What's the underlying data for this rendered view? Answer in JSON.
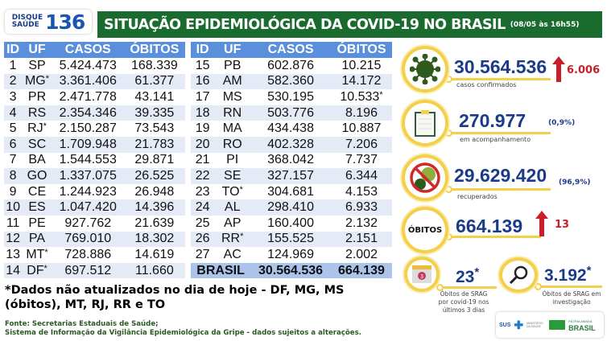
{
  "logo": {
    "line1": "DISQUE",
    "line2": "SAÚDE",
    "number": "136"
  },
  "header": {
    "title": "SITUAÇÃO EPIDEMIOLÓGICA DA COVID-19 NO BRASIL",
    "timestamp": "(08/05 às 16h55)"
  },
  "table": {
    "columns": [
      "ID",
      "UF",
      "CASOS",
      "ÓBITOS"
    ],
    "rows_left": [
      [
        "1",
        "SP",
        "",
        "5.424.473",
        "168.339",
        ""
      ],
      [
        "2",
        "MG",
        "*",
        "3.361.406",
        "61.377",
        ""
      ],
      [
        "3",
        "PR",
        "",
        "2.471.778",
        "43.141",
        ""
      ],
      [
        "4",
        "RS",
        "",
        "2.354.346",
        "39.335",
        ""
      ],
      [
        "5",
        "RJ",
        "*",
        "2.150.287",
        "73.543",
        ""
      ],
      [
        "6",
        "SC",
        "",
        "1.709.948",
        "21.783",
        ""
      ],
      [
        "7",
        "BA",
        "",
        "1.544.553",
        "29.871",
        ""
      ],
      [
        "8",
        "GO",
        "",
        "1.337.075",
        "26.525",
        ""
      ],
      [
        "9",
        "CE",
        "",
        "1.244.923",
        "26.948",
        ""
      ],
      [
        "10",
        "ES",
        "",
        "1.047.420",
        "14.396",
        ""
      ],
      [
        "11",
        "PE",
        "",
        "927.762",
        "21.639",
        ""
      ],
      [
        "12",
        "PA",
        "",
        "769.010",
        "18.302",
        ""
      ],
      [
        "13",
        "MT",
        "*",
        "728.886",
        "14.619",
        ""
      ],
      [
        "14",
        "DF",
        "*",
        "697.512",
        "11.660",
        ""
      ]
    ],
    "rows_right": [
      [
        "15",
        "PB",
        "",
        "602.876",
        "10.215",
        ""
      ],
      [
        "16",
        "AM",
        "",
        "582.360",
        "14.172",
        ""
      ],
      [
        "17",
        "MS",
        "",
        "530.195",
        "10.533",
        "*"
      ],
      [
        "18",
        "RN",
        "",
        "503.776",
        "8.196",
        ""
      ],
      [
        "19",
        "MA",
        "",
        "434.438",
        "10.887",
        ""
      ],
      [
        "20",
        "RO",
        "",
        "402.328",
        "7.206",
        ""
      ],
      [
        "21",
        "PI",
        "",
        "368.042",
        "7.737",
        ""
      ],
      [
        "22",
        "SE",
        "",
        "327.157",
        "6.344",
        ""
      ],
      [
        "23",
        "TO",
        "*",
        "304.681",
        "4.153",
        ""
      ],
      [
        "24",
        "AL",
        "",
        "298.410",
        "6.933",
        ""
      ],
      [
        "25",
        "AP",
        "",
        "160.400",
        "2.132",
        ""
      ],
      [
        "26",
        "RR",
        "*",
        "155.525",
        "2.151",
        ""
      ],
      [
        "27",
        "AC",
        "",
        "124.969",
        "2.002",
        ""
      ]
    ],
    "total": {
      "label": "BRASIL",
      "casos": "30.564.536",
      "obitos": "664.139"
    }
  },
  "note": "*Dados não atualizados no dia de hoje - DF, MG, MS (óbitos), MT, RJ, RR e TO",
  "source": {
    "line1": "Fonte: Secretarias Estaduais de Saúde;",
    "line2": "Sistema de Informação da Vigilância Epidemiológica da Gripe - dados sujeitos a alterações."
  },
  "stats": {
    "confirmed": {
      "value": "30.564.536",
      "label": "casos confirmados",
      "delta": "6.006",
      "icon": "virus-icon"
    },
    "monitoring": {
      "value": "270.977",
      "pct": "(0,9%)",
      "label": "em acompanhamento",
      "icon": "clipboard-icon"
    },
    "recovered": {
      "value": "29.629.420",
      "pct": "(96,9%)",
      "label": "recuperados",
      "icon": "no-virus-icon"
    },
    "deaths": {
      "badge": "ÓBITOS",
      "value": "664.139",
      "delta": "13"
    },
    "srag_recent": {
      "value": "23",
      "star": "*",
      "label": "Óbitos de SRAG por covid-19 nos últimos 3 dias",
      "icon": "calendar-icon",
      "cal_day": "3"
    },
    "srag_investigation": {
      "value": "3.192",
      "star": "*",
      "label": "Óbitos de SRAG em investigação",
      "icon": "magnifier-icon"
    }
  },
  "footer_logos": {
    "sus": "SUS",
    "ministry": "MINISTÉRIO DA SAÚDE",
    "brasil": "BRASIL",
    "motto": "PÁTRIA AMADA"
  },
  "colors": {
    "banner": "#1a6b2e",
    "table_header": "#5a8fdc",
    "accent_ring": "#f3cf4a",
    "number": "#1a3a8a",
    "delta": "#c8202a"
  }
}
